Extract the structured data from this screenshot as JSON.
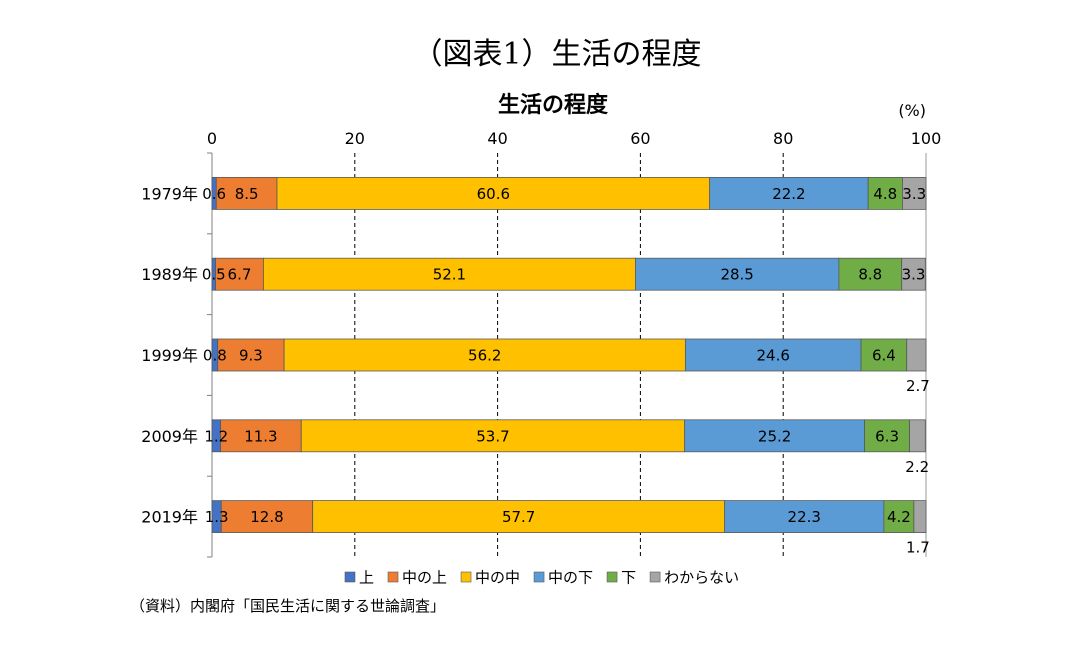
{
  "figure_title": "（図表1）生活の程度",
  "source_note": "（資料）内閣府「国民生活に関する世論調査」",
  "chart_data": {
    "type": "bar",
    "orientation": "horizontal",
    "stacked": true,
    "title": "生活の程度",
    "unit_label": "(%)",
    "xlim": [
      0,
      100
    ],
    "x_ticks": [
      0,
      20,
      40,
      60,
      80,
      100
    ],
    "grid": "vertical dashed",
    "legend_position": "bottom",
    "categories": [
      "1979年",
      "1989年",
      "1999年",
      "2009年",
      "2019年"
    ],
    "series": [
      {
        "name": "上",
        "color": "#4472C4",
        "values": [
          0.6,
          0.5,
          0.8,
          1.2,
          1.3
        ]
      },
      {
        "name": "中の上",
        "color": "#ED7D31",
        "values": [
          8.5,
          6.7,
          9.3,
          11.3,
          12.8
        ]
      },
      {
        "name": "中の中",
        "color": "#FFC000",
        "values": [
          60.6,
          52.1,
          56.2,
          53.7,
          57.7
        ]
      },
      {
        "name": "中の下",
        "color": "#5B9BD5",
        "values": [
          22.2,
          28.5,
          24.6,
          25.2,
          22.3
        ]
      },
      {
        "name": "下",
        "color": "#70AD47",
        "values": [
          4.8,
          8.8,
          6.4,
          6.3,
          4.2
        ]
      },
      {
        "name": "わからない",
        "color": "#A5A5A5",
        "values": [
          3.3,
          3.3,
          2.7,
          2.2,
          1.7
        ]
      }
    ]
  }
}
